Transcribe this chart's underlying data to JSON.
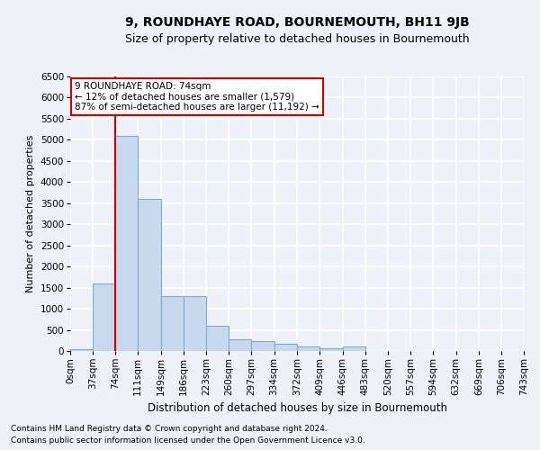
{
  "title": "9, ROUNDHAYE ROAD, BOURNEMOUTH, BH11 9JB",
  "subtitle": "Size of property relative to detached houses in Bournemouth",
  "xlabel": "Distribution of detached houses by size in Bournemouth",
  "ylabel": "Number of detached properties",
  "footnote1": "Contains HM Land Registry data © Crown copyright and database right 2024.",
  "footnote2": "Contains public sector information licensed under the Open Government Licence v3.0.",
  "annotation_line0": "9 ROUNDHAYE ROAD: 74sqm",
  "annotation_line1": "← 12% of detached houses are smaller (1,579)",
  "annotation_line2": "87% of semi-detached houses are larger (11,192) →",
  "bar_color": "#c8d9ee",
  "bar_edge_color": "#7aadd4",
  "redline_color": "#cc0000",
  "redline_x": 74,
  "categories": [
    "0sqm",
    "37sqm",
    "74sqm",
    "111sqm",
    "149sqm",
    "186sqm",
    "223sqm",
    "260sqm",
    "297sqm",
    "334sqm",
    "372sqm",
    "409sqm",
    "446sqm",
    "483sqm",
    "520sqm",
    "557sqm",
    "594sqm",
    "632sqm",
    "669sqm",
    "706sqm",
    "743sqm"
  ],
  "bin_edges": [
    0,
    37,
    74,
    111,
    149,
    186,
    223,
    260,
    297,
    334,
    372,
    409,
    446,
    483,
    520,
    557,
    594,
    632,
    669,
    706,
    743
  ],
  "bar_heights": [
    50,
    1600,
    5100,
    3600,
    1300,
    1300,
    600,
    270,
    230,
    180,
    100,
    60,
    100,
    0,
    0,
    0,
    0,
    0,
    0,
    0
  ],
  "ylim": [
    0,
    6500
  ],
  "yticks": [
    0,
    500,
    1000,
    1500,
    2000,
    2500,
    3000,
    3500,
    4000,
    4500,
    5000,
    5500,
    6000,
    6500
  ],
  "background_color": "#eef2f8",
  "plot_bg_color": "#eef2f8",
  "grid_color": "#ffffff",
  "title_fontsize": 10,
  "subtitle_fontsize": 9,
  "ylabel_fontsize": 8,
  "xlabel_fontsize": 8.5,
  "annotation_fontsize": 7.5,
  "tick_fontsize": 7.5,
  "footnote_fontsize": 6.5
}
